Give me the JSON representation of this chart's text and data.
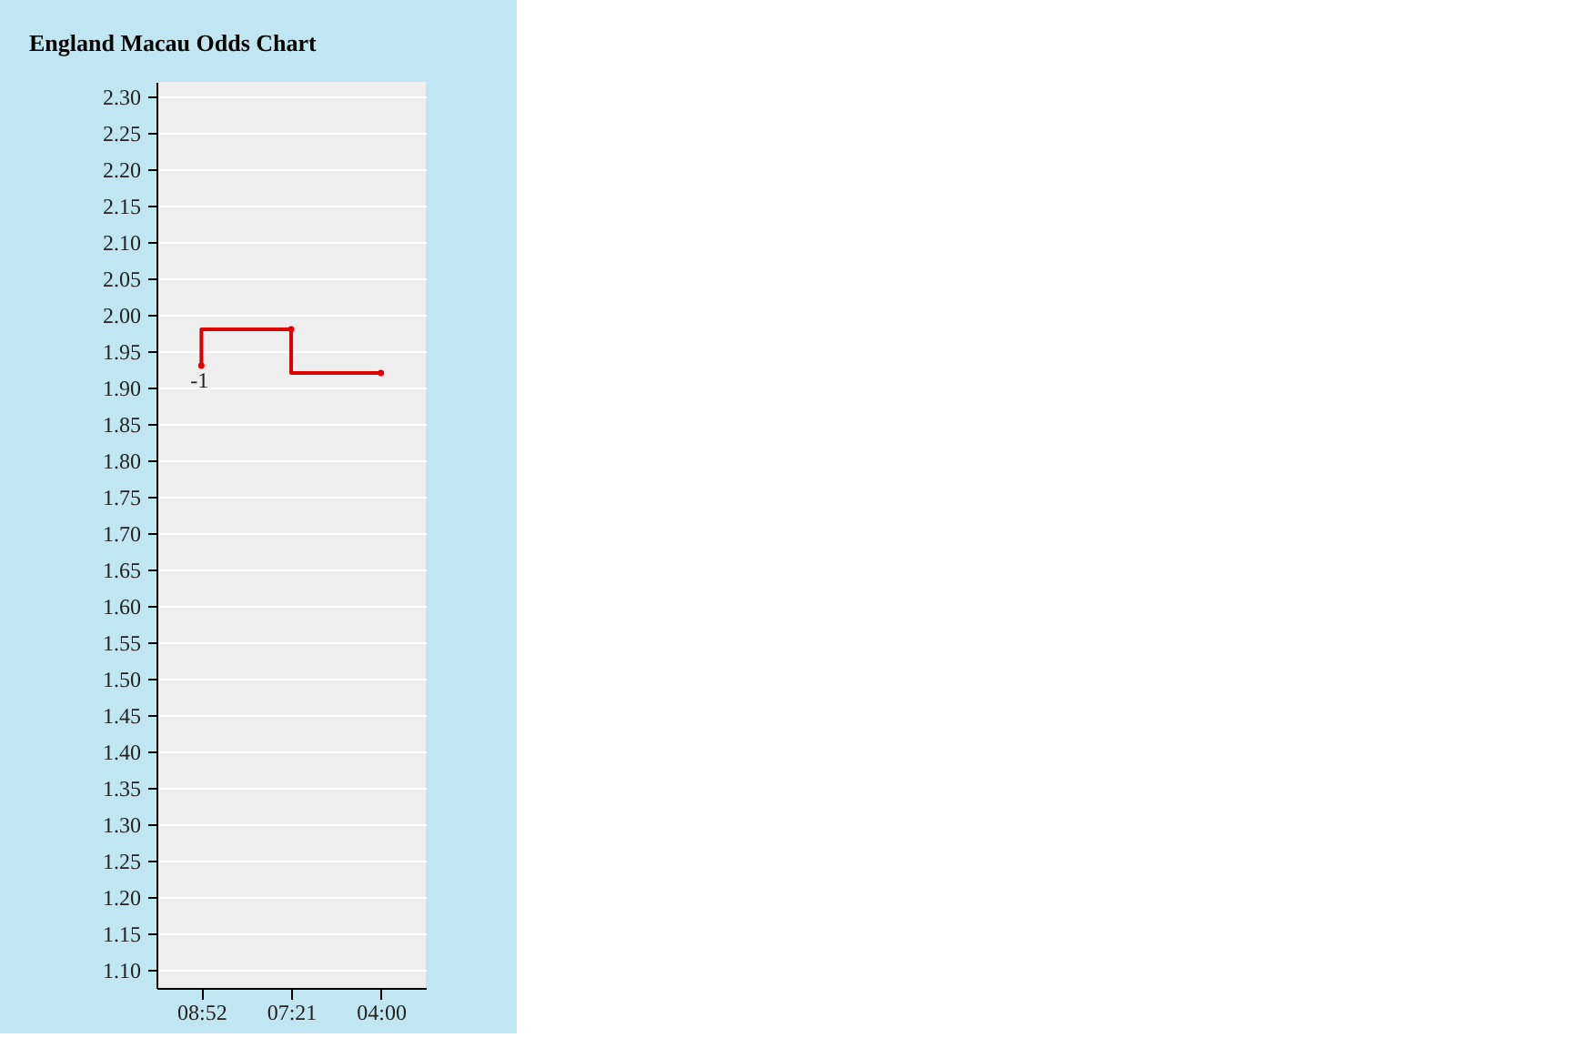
{
  "chart_data": {
    "type": "step",
    "title": "England Macau Odds Chart",
    "categories": [
      "08:52",
      "07:21",
      "04:00"
    ],
    "series": [
      {
        "color": "#e00000",
        "values": [
          1.93,
          1.98,
          1.92
        ]
      }
    ],
    "ylim": [
      1.075,
      2.32
    ],
    "yticks": [
      {
        "value": 1.1,
        "label": "1.10"
      },
      1.15,
      {
        "value": 1.2,
        "label": "1.20"
      },
      1.25,
      {
        "value": 1.3,
        "label": "1.30"
      },
      1.35,
      {
        "value": 1.4,
        "label": "1.40"
      },
      1.45,
      {
        "value": 1.5,
        "label": "1.50"
      },
      1.55,
      {
        "value": 1.6,
        "label": "1.60"
      },
      1.65,
      {
        "value": 1.7,
        "label": "1.70"
      },
      1.75,
      {
        "value": 1.8,
        "label": "1.80"
      },
      1.85,
      {
        "value": 1.9,
        "label": "1.90"
      },
      1.95,
      {
        "value": 2.0,
        "label": "2.00"
      },
      2.05,
      {
        "value": 2.1,
        "label": "2.10"
      },
      2.15,
      {
        "value": 2.2,
        "label": "2.20"
      },
      2.25,
      {
        "value": 2.3,
        "label": "2.30"
      }
    ],
    "grid": "y",
    "marker": "circle",
    "line_style": "solid",
    "annotations": [
      {
        "text": "-1",
        "x": "08:52",
        "y": 1.93
      }
    ]
  }
}
